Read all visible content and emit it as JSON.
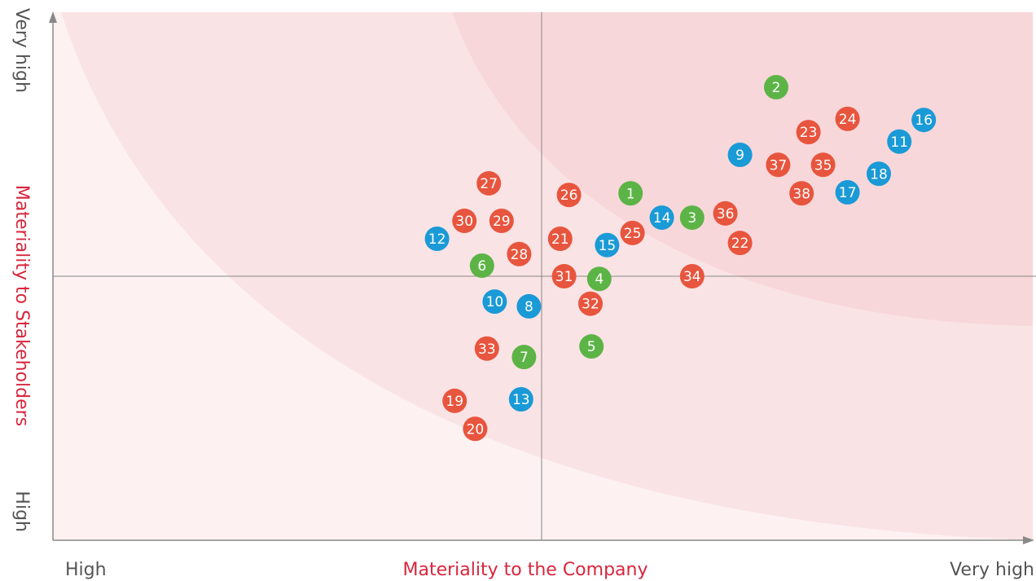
{
  "chart_data": {
    "type": "scatter",
    "xlabel": "Materiality to the Company",
    "ylabel": "Materiality to Stakeholders",
    "xlim": [
      0,
      100
    ],
    "ylim": [
      0,
      100
    ],
    "xticks": [
      {
        "value": 0,
        "label": "High"
      },
      {
        "value": 100,
        "label": "Very high"
      }
    ],
    "yticks": [
      {
        "value": 0,
        "label": "High"
      },
      {
        "value": 100,
        "label": "Very high"
      }
    ],
    "point_labels": [
      "1",
      "2",
      "3",
      "4",
      "5",
      "6",
      "7",
      "8",
      "9",
      "10",
      "11",
      "12",
      "13",
      "14",
      "15",
      "16",
      "17",
      "18",
      "19",
      "20",
      "21",
      "22",
      "23",
      "24",
      "25",
      "26",
      "27",
      "28",
      "29",
      "30",
      "31",
      "32",
      "33",
      "34",
      "35",
      "36",
      "37",
      "38"
    ],
    "x": [
      59.1,
      74.0,
      65.4,
      55.9,
      55.1,
      43.9,
      48.2,
      48.7,
      70.3,
      45.2,
      86.6,
      39.3,
      47.9,
      62.3,
      56.7,
      89.1,
      81.3,
      84.5,
      41.1,
      43.2,
      51.9,
      70.3,
      77.3,
      81.3,
      59.3,
      52.8,
      44.6,
      47.7,
      45.9,
      42.1,
      52.3,
      55.0,
      44.4,
      65.4,
      78.8,
      68.8,
      74.2,
      76.6
    ],
    "y": [
      65.7,
      85.8,
      61.1,
      49.5,
      36.7,
      52.0,
      34.7,
      44.3,
      73.0,
      45.2,
      75.5,
      57.1,
      26.7,
      61.1,
      55.9,
      79.6,
      65.9,
      69.4,
      26.4,
      21.1,
      57.1,
      56.3,
      77.3,
      79.8,
      58.2,
      65.4,
      67.6,
      54.2,
      60.5,
      60.5,
      50.0,
      44.8,
      36.3,
      50.0,
      71.1,
      61.9,
      71.1,
      65.7
    ],
    "colors": [
      "#5cb446",
      "#5cb446",
      "#5cb446",
      "#5cb446",
      "#5cb446",
      "#5cb446",
      "#5cb446",
      "#1a9ad6",
      "#1a9ad6",
      "#1a9ad6",
      "#1a9ad6",
      "#1a9ad6",
      "#1a9ad6",
      "#1a9ad6",
      "#1a9ad6",
      "#1a9ad6",
      "#1a9ad6",
      "#1a9ad6",
      "#e8553e",
      "#e8553e",
      "#e8553e",
      "#e8553e",
      "#e8553e",
      "#e8553e",
      "#e8553e",
      "#e8553e",
      "#e8553e",
      "#e8553e",
      "#e8553e",
      "#e8553e",
      "#e8553e",
      "#e8553e",
      "#e8553e",
      "#e8553e",
      "#e8553e",
      "#e8553e",
      "#e8553e",
      "#e8553e"
    ]
  }
}
